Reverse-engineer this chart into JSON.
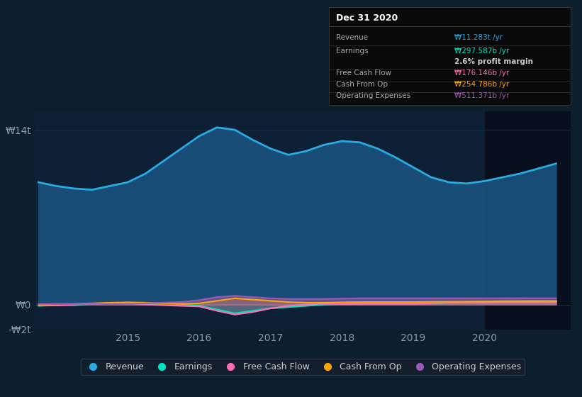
{
  "background_color": "#0d1f2d",
  "plot_bg_color": "#0d2035",
  "grid_color": "#1e3a50",
  "ylabel_top": "₩14t",
  "ylabel_zero": "₩0",
  "ylabel_neg": "-₩2t",
  "ylim": [
    -2.0,
    15.5
  ],
  "xlim_start": 2013.7,
  "xlim_end": 2021.2,
  "xticks": [
    2015,
    2016,
    2017,
    2018,
    2019,
    2020
  ],
  "revenue_color": "#29abe2",
  "revenue_fill_color": "#1a4f7a",
  "earnings_color": "#00e5c0",
  "fcf_color": "#ff6eb4",
  "cashfromop_color": "#ffa500",
  "opex_color": "#9b59b6",
  "tooltip_title": "Dec 31 2020",
  "tooltip_rows": [
    {
      "label": "Revenue",
      "value": "₩11.283t /yr",
      "value_color": "#29abe2"
    },
    {
      "label": "Earnings",
      "value": "₩297.587b /yr",
      "value_color": "#00e5c0"
    },
    {
      "label": "",
      "value": "2.6% profit margin",
      "value_color": "#cccccc"
    },
    {
      "label": "Free Cash Flow",
      "value": "₩176.146b /yr",
      "value_color": "#ff6eb4"
    },
    {
      "label": "Cash From Op",
      "value": "₩254.786b /yr",
      "value_color": "#ffa500"
    },
    {
      "label": "Operating Expenses",
      "value": "₩511.371b /yr",
      "value_color": "#9b59b6"
    }
  ],
  "revenue_x": [
    2013.75,
    2014.0,
    2014.25,
    2014.5,
    2014.75,
    2015.0,
    2015.25,
    2015.5,
    2015.75,
    2016.0,
    2016.25,
    2016.5,
    2016.75,
    2017.0,
    2017.25,
    2017.5,
    2017.75,
    2018.0,
    2018.25,
    2018.5,
    2018.75,
    2019.0,
    2019.25,
    2019.5,
    2019.75,
    2020.0,
    2020.25,
    2020.5,
    2020.75,
    2021.0
  ],
  "revenue_y": [
    9.8,
    9.5,
    9.3,
    9.2,
    9.5,
    9.8,
    10.5,
    11.5,
    12.5,
    13.5,
    14.2,
    14.0,
    13.2,
    12.5,
    12.0,
    12.3,
    12.8,
    13.1,
    13.0,
    12.5,
    11.8,
    11.0,
    10.2,
    9.8,
    9.7,
    9.9,
    10.2,
    10.5,
    10.9,
    11.3
  ],
  "earnings_x": [
    2013.75,
    2014.0,
    2014.25,
    2014.5,
    2014.75,
    2015.0,
    2015.25,
    2015.5,
    2015.75,
    2016.0,
    2016.25,
    2016.5,
    2016.75,
    2017.0,
    2017.25,
    2017.5,
    2017.75,
    2018.0,
    2018.25,
    2018.5,
    2018.75,
    2019.0,
    2019.25,
    2019.5,
    2019.75,
    2020.0,
    2020.25,
    2020.5,
    2020.75,
    2021.0
  ],
  "earnings_y": [
    -0.1,
    -0.05,
    -0.05,
    0.05,
    0.1,
    0.15,
    0.1,
    0.08,
    0.05,
    -0.1,
    -0.4,
    -0.7,
    -0.5,
    -0.3,
    -0.2,
    -0.1,
    0.0,
    0.05,
    0.1,
    0.15,
    0.15,
    0.1,
    0.1,
    0.15,
    0.2,
    0.25,
    0.28,
    0.29,
    0.3,
    0.3
  ],
  "fcf_x": [
    2013.75,
    2014.0,
    2014.25,
    2014.5,
    2014.75,
    2015.0,
    2015.25,
    2015.5,
    2015.75,
    2016.0,
    2016.25,
    2016.5,
    2016.75,
    2017.0,
    2017.25,
    2017.5,
    2017.75,
    2018.0,
    2018.25,
    2018.5,
    2018.75,
    2019.0,
    2019.25,
    2019.5,
    2019.75,
    2020.0,
    2020.25,
    2020.5,
    2020.75,
    2021.0
  ],
  "fcf_y": [
    -0.05,
    -0.05,
    0.0,
    0.05,
    0.1,
    0.05,
    0.0,
    -0.05,
    -0.1,
    -0.15,
    -0.5,
    -0.8,
    -0.6,
    -0.3,
    -0.1,
    0.0,
    0.05,
    0.05,
    0.05,
    0.05,
    0.05,
    0.05,
    0.1,
    0.15,
    0.15,
    0.15,
    0.17,
    0.17,
    0.17,
    0.18
  ],
  "cashfromop_x": [
    2013.75,
    2014.0,
    2014.25,
    2014.5,
    2014.75,
    2015.0,
    2015.25,
    2015.5,
    2015.75,
    2016.0,
    2016.25,
    2016.5,
    2016.75,
    2017.0,
    2017.25,
    2017.5,
    2017.75,
    2018.0,
    2018.25,
    2018.5,
    2018.75,
    2019.0,
    2019.25,
    2019.5,
    2019.75,
    2020.0,
    2020.25,
    2020.5,
    2020.75,
    2021.0
  ],
  "cashfromop_y": [
    0.0,
    0.02,
    0.05,
    0.1,
    0.15,
    0.18,
    0.15,
    0.1,
    0.05,
    0.1,
    0.3,
    0.5,
    0.4,
    0.3,
    0.2,
    0.15,
    0.15,
    0.18,
    0.2,
    0.2,
    0.2,
    0.2,
    0.22,
    0.23,
    0.24,
    0.25,
    0.25,
    0.25,
    0.25,
    0.25
  ],
  "opex_x": [
    2013.75,
    2014.0,
    2014.25,
    2014.5,
    2014.75,
    2015.0,
    2015.25,
    2015.5,
    2015.75,
    2016.0,
    2016.25,
    2016.5,
    2016.75,
    2017.0,
    2017.25,
    2017.5,
    2017.75,
    2018.0,
    2018.25,
    2018.5,
    2018.75,
    2019.0,
    2019.25,
    2019.5,
    2019.75,
    2020.0,
    2020.25,
    2020.5,
    2020.75,
    2021.0
  ],
  "opex_y": [
    0.05,
    0.05,
    0.05,
    0.05,
    0.05,
    0.05,
    0.1,
    0.15,
    0.2,
    0.35,
    0.6,
    0.7,
    0.6,
    0.5,
    0.45,
    0.45,
    0.45,
    0.48,
    0.5,
    0.5,
    0.5,
    0.5,
    0.5,
    0.5,
    0.5,
    0.5,
    0.51,
    0.51,
    0.51,
    0.51
  ],
  "highlight_x_start": 2020.0,
  "highlight_x_end": 2021.2,
  "legend_items": [
    {
      "label": "Revenue",
      "color": "#29abe2"
    },
    {
      "label": "Earnings",
      "color": "#00e5c0"
    },
    {
      "label": "Free Cash Flow",
      "color": "#ff6eb4"
    },
    {
      "label": "Cash From Op",
      "color": "#ffa500"
    },
    {
      "label": "Operating Expenses",
      "color": "#9b59b6"
    }
  ]
}
